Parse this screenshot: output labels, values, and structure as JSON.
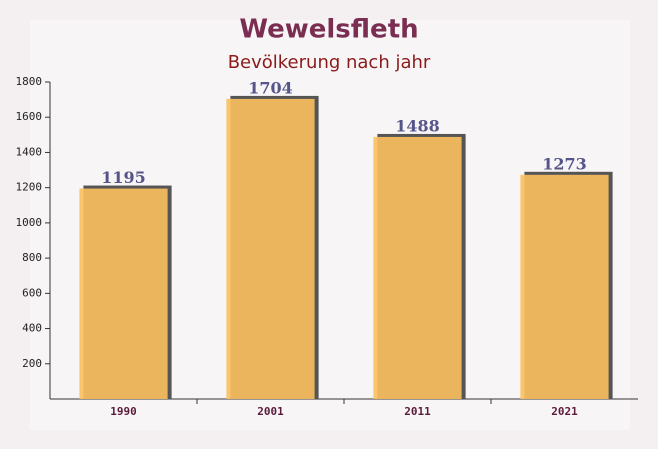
{
  "chart_data": {
    "type": "bar",
    "title": "Wewelsfleth",
    "subtitle": "Bevölkerung nach jahr",
    "categories": [
      "1990",
      "2001",
      "2011",
      "2021"
    ],
    "values": [
      1195,
      1704,
      1488,
      1273
    ],
    "color": "#fbc05e",
    "ylim": [
      0,
      1800
    ],
    "yticks": [
      200,
      400,
      600,
      800,
      1000,
      1200,
      1400,
      1600,
      1800
    ],
    "grid": false
  }
}
